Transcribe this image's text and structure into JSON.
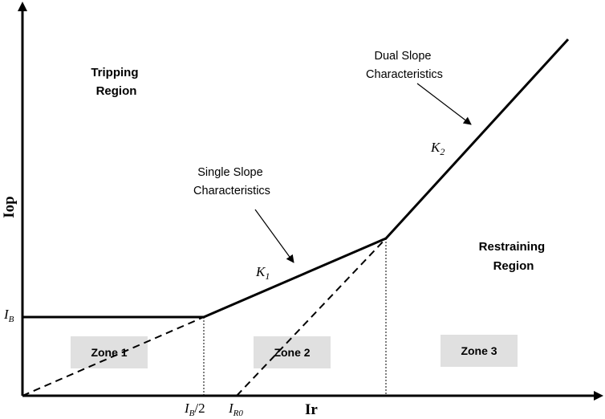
{
  "axes": {
    "y_label": "Iop",
    "x_label": "Ir"
  },
  "regions": {
    "tripping": [
      "Tripping",
      "Region"
    ],
    "restraining": [
      "Restraining",
      "Region"
    ]
  },
  "annotations": {
    "dual_slope": [
      "Dual Slope",
      "Characteristics"
    ],
    "single_slope": [
      "Single Slope",
      "Characteristics"
    ]
  },
  "slopes": {
    "k1": {
      "base": "K",
      "sub": "1"
    },
    "k2": {
      "base": "K",
      "sub": "2"
    }
  },
  "ticks": {
    "ib": {
      "base": "I",
      "sub": "B"
    },
    "ib_half": {
      "base": "I",
      "sub": "B",
      "suffix": "/2"
    },
    "ir0": {
      "base": "I",
      "sub": "R0"
    }
  },
  "zones": {
    "zone1": "Zone 1",
    "zone2": "Zone 2",
    "zone3": "Zone 3"
  },
  "colors": {
    "line": "#000000",
    "zone_fill": "#e0e0e0"
  }
}
